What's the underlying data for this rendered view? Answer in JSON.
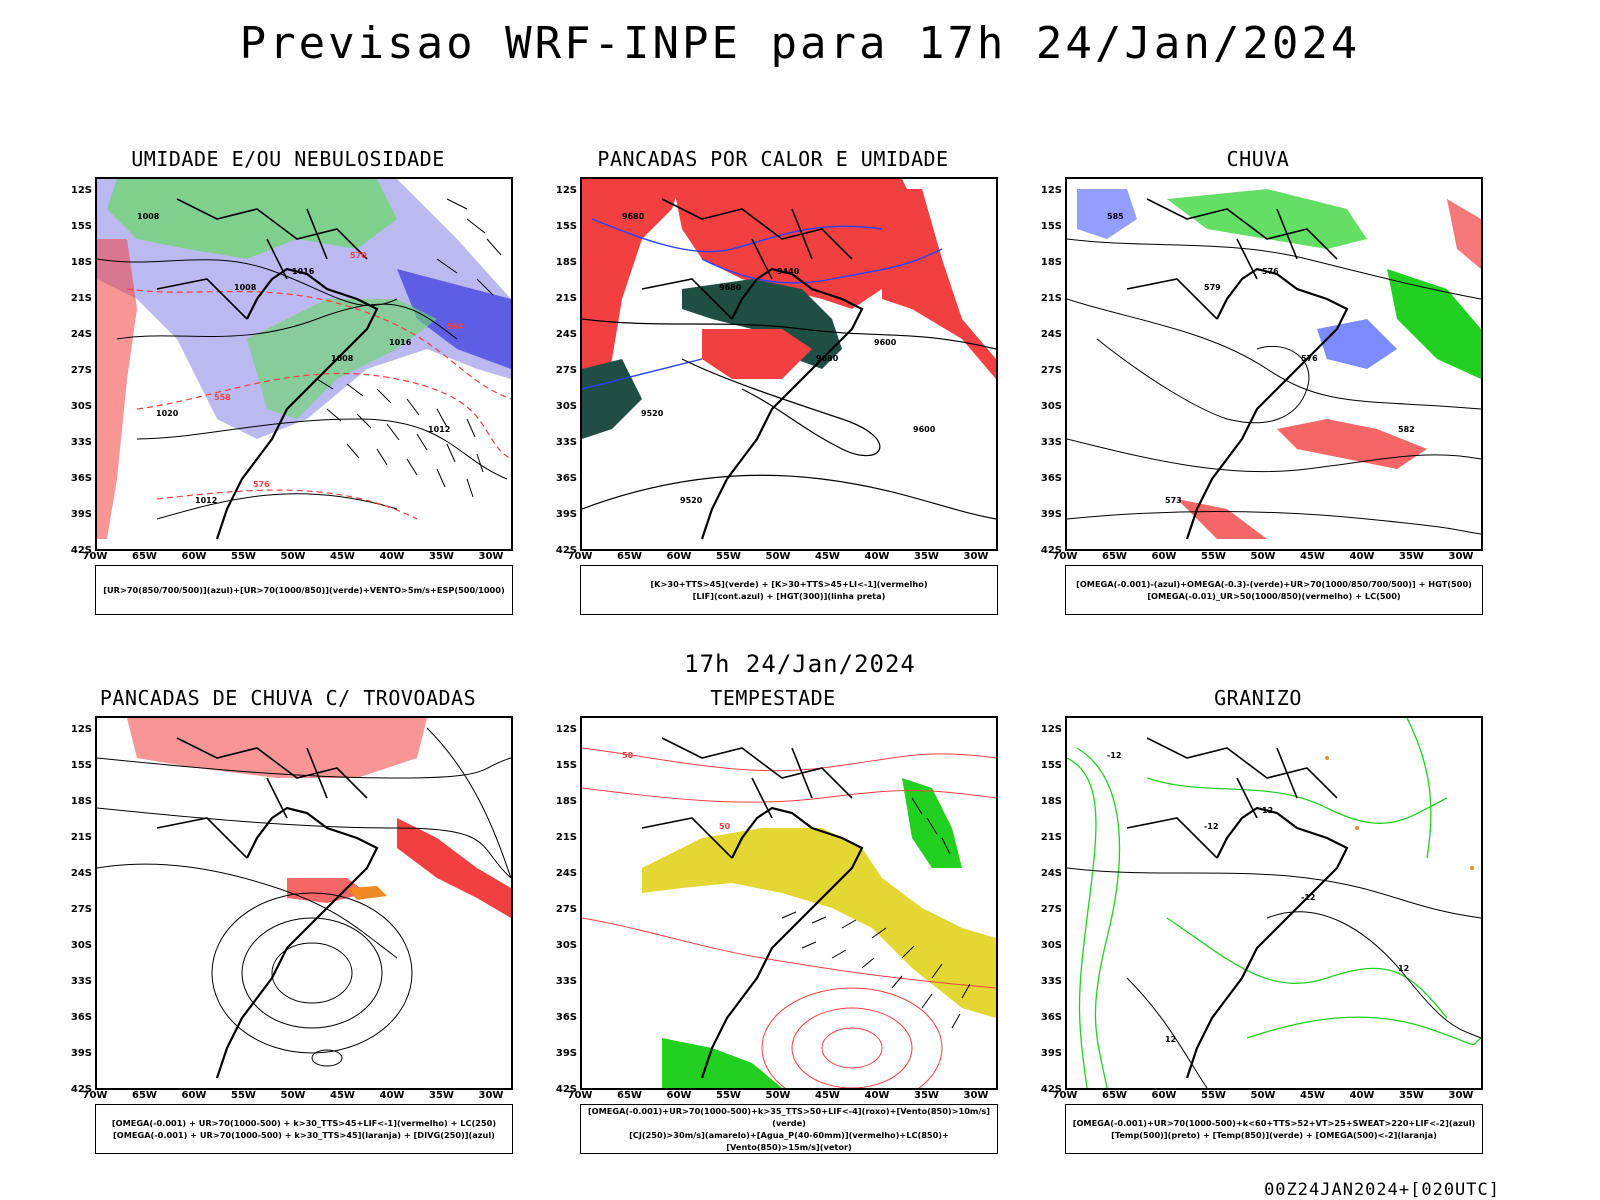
{
  "main_title": "Previsao WRF-INPE  para 17h 24/Jan/2024",
  "mid_title": "17h 24/Jan/2024",
  "footer": "00Z24JAN2024+[020UTC]",
  "lat_labels": [
    "12S",
    "15S",
    "18S",
    "21S",
    "24S",
    "27S",
    "30S",
    "33S",
    "36S",
    "39S",
    "42S"
  ],
  "lon_labels": [
    "70W",
    "65W",
    "60W",
    "55W",
    "50W",
    "45W",
    "40W",
    "35W",
    "30W"
  ],
  "panels": [
    {
      "title": "UMIDADE E/OU NEBULOSIDADE",
      "legend_lines": [
        "[UR>70(850/700/500)](azul)+[UR>70(1000/850)](verde)+VENTO>5m/s+ESP(500/1000)"
      ],
      "contour_labels": [
        "1008",
        "1008",
        "1008",
        "1012",
        "1012",
        "1016",
        "1016",
        "1020",
        "576",
        "570",
        "564",
        "558"
      ]
    },
    {
      "title": "PANCADAS POR CALOR E UMIDADE",
      "legend_lines": [
        "[K>30+TTS>45](verde) + [K>30+TTS>45+LI<-1](vermelho)",
        "[LIF](cont.azul) + [HGT(300)](linha preta)"
      ],
      "contour_labels": [
        "9680",
        "9680",
        "9680",
        "9600",
        "9520",
        "9440",
        "9600",
        "9520"
      ]
    },
    {
      "title": "CHUVA",
      "legend_lines": [
        "[OMEGA(-0.001)-(azul)+OMEGA(-0.3)-(verde)+UR>70(1000/850/700/500)] + HGT(500)",
        "[OMEGA(-0.01)_UR>50(1000/850)(vermelho) + LC(500)"
      ],
      "contour_labels": [
        "585",
        "579",
        "576",
        "582",
        "573",
        "576"
      ]
    },
    {
      "title": "PANCADAS DE CHUVA C/ TROVOADAS",
      "legend_lines": [
        "[OMEGA(-0.001) + UR>70(1000-500) + k>30_TTS>45+LIF<-1](vermelho) + LC(250)",
        "[OMEGA(-0.001) + UR>70(1000-500) + k>30_TTS>45](laranja) + [DIVG(250)](azul)"
      ],
      "contour_labels": []
    },
    {
      "title": "TEMPESTADE",
      "legend_lines": [
        "[OMEGA(-0.001)+UR>70(1000-500)+k>35_TTS>50+LIF<-4](roxo)+[Vento(850)>10m/s](verde)",
        "[CJ(250)>30m/s](amarelo)+[Agua_P(40-60mm)](vermelho)+LC(850)+[Vento(850)>15m/s](vetor)"
      ],
      "contour_labels": [
        "50",
        "50"
      ]
    },
    {
      "title": "GRANIZO",
      "legend_lines": [
        "[OMEGA(-0.001)+UR>70(1000-500)+k<60+TTS>52+VT>25+SWEAT>220+LIF<-2](azul)",
        "[Temp(500)](preto) + [Temp(850)](verde) + [OMEGA(500)<-2](laranja)"
      ],
      "contour_labels": [
        "-12",
        "-12",
        "-12",
        "12",
        "12",
        "12"
      ]
    }
  ],
  "colors": {
    "humidity_high": "#a9a9ee",
    "humidity_low": "#6bd66b",
    "wind": "#3f3fe0",
    "red_field": "#f24040",
    "dark_green": "#1f4f44",
    "bright_green": "#22d022",
    "yellow_jet": "#e4d633",
    "orange": "#f08a24",
    "blue_dots": "#2540ff"
  }
}
